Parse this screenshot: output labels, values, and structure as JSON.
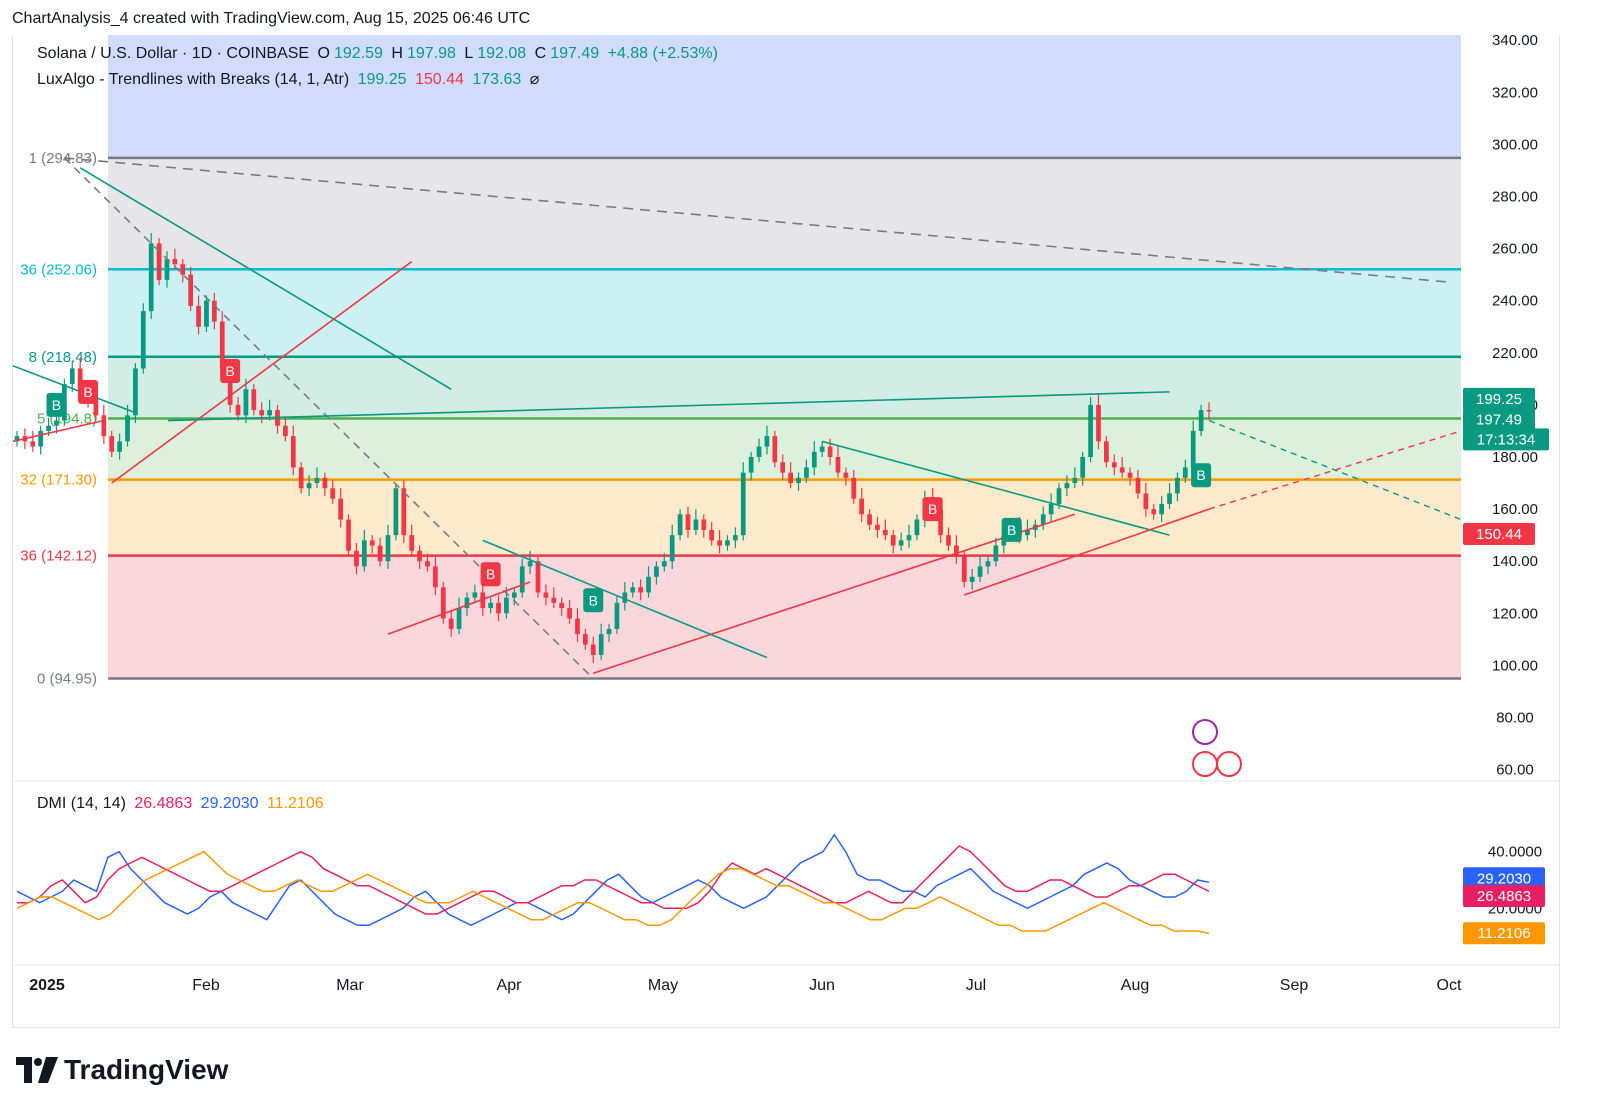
{
  "caption": "ChartAnalysis_4 created with TradingView.com, Aug 15, 2025 06:46 UTC",
  "brand": "TradingView",
  "legend": {
    "symbol": "Solana / U.S. Dollar · 1D · COINBASE",
    "open_label": "O",
    "open": "192.59",
    "high_label": "H",
    "high": "197.98",
    "low_label": "L",
    "low": "192.08",
    "close_label": "C",
    "close": "197.49",
    "change": "+4.88 (+2.53%)",
    "indicator": "LuxAlgo - Trendlines with Breaks (14, 1, Atr)",
    "ind_v1": "199.25",
    "ind_v2": "150.44",
    "ind_v3": "173.63",
    "ind_icon": "⌀"
  },
  "dmi_legend": {
    "label": "DMI (14, 14)",
    "v1": "26.4863",
    "v2": "29.2030",
    "v3": "11.2106"
  },
  "colors": {
    "up": "#089981",
    "down": "#f23645",
    "blue": "#2962ff",
    "pink": "#e91e63",
    "orange": "#ff9800",
    "fib_grey": "#787b86"
  },
  "chart_data": {
    "type": "candlestick",
    "x_axis": {
      "labels": [
        "2025",
        "Feb",
        "Mar",
        "Apr",
        "May",
        "Jun",
        "Jul",
        "Aug",
        "Sep",
        "Oct"
      ],
      "range": [
        "2025-01-01",
        "2025-10-01"
      ]
    },
    "y_axis": {
      "ticks": [
        "340.00",
        "320.00",
        "300.00",
        "280.00",
        "260.00",
        "240.00",
        "220.00",
        "200.00",
        "180.00",
        "160.00",
        "140.00",
        "120.00",
        "100.00",
        "80.00",
        "60.00"
      ],
      "range": [
        56,
        342
      ]
    },
    "price_labels": {
      "upper": "199.25",
      "close": "197.49",
      "countdown": "17:13:34",
      "lower": "150.44"
    },
    "fib_levels": [
      {
        "label": "1 (294.83)",
        "value": 294.83,
        "color": "#787b86"
      },
      {
        "label": "36 (252.06)",
        "value": 252.06,
        "color": "#00bcd4"
      },
      {
        "label": "8 (218.48)",
        "value": 218.48,
        "color": "#089981"
      },
      {
        "label": "5 (194.8)",
        "value": 194.8,
        "color": "#4caf50"
      },
      {
        "label": "32 (171.30)",
        "value": 171.3,
        "color": "#ff9800"
      },
      {
        "label": "36 (142.12)",
        "value": 142.12,
        "color": "#f23645"
      },
      {
        "label": "0 (94.95)",
        "value": 94.95,
        "color": "#787b86"
      }
    ],
    "fib_zones": [
      {
        "from": 294.83,
        "to": 342,
        "color": "#d1dcfd"
      },
      {
        "from": 252.06,
        "to": 294.83,
        "color": "#e6e6e8"
      },
      {
        "from": 218.48,
        "to": 252.06,
        "color": "#cdf0f3"
      },
      {
        "from": 194.8,
        "to": 218.48,
        "color": "#d2ede4"
      },
      {
        "from": 171.3,
        "to": 194.8,
        "color": "#dcf0dc"
      },
      {
        "from": 142.12,
        "to": 171.3,
        "color": "#fde9cc"
      },
      {
        "from": 94.95,
        "to": 142.12,
        "color": "#fad7da"
      }
    ],
    "candles_close": [
      188,
      186,
      184,
      190,
      192,
      194,
      208,
      214,
      206,
      202,
      196,
      188,
      182,
      186,
      196,
      214,
      236,
      262,
      248,
      256,
      254,
      250,
      238,
      230,
      240,
      232,
      214,
      200,
      196,
      206,
      198,
      196,
      198,
      192,
      188,
      176,
      168,
      170,
      172,
      168,
      164,
      156,
      144,
      138,
      148,
      146,
      140,
      150,
      168,
      150,
      144,
      140,
      138,
      130,
      118,
      114,
      122,
      126,
      128,
      122,
      124,
      120,
      126,
      128,
      138,
      140,
      128,
      126,
      124,
      122,
      118,
      112,
      108,
      104,
      112,
      114,
      124,
      128,
      130,
      128,
      134,
      138,
      140,
      150,
      158,
      152,
      156,
      152,
      148,
      146,
      148,
      150,
      174,
      180,
      184,
      188,
      178,
      174,
      170,
      172,
      176,
      182,
      184,
      180,
      174,
      172,
      164,
      158,
      154,
      152,
      150,
      146,
      148,
      150,
      156,
      164,
      160,
      150,
      146,
      142,
      132,
      134,
      138,
      140,
      146,
      150,
      154,
      150,
      152,
      154,
      158,
      162,
      168,
      170,
      172,
      180,
      200,
      186,
      178,
      176,
      174,
      172,
      166,
      160,
      158,
      162,
      166,
      172,
      176,
      190,
      198,
      197.49
    ],
    "dmi": {
      "plus_di": [
        22,
        22,
        24,
        28,
        30,
        26,
        22,
        24,
        30,
        34,
        36,
        38,
        36,
        34,
        32,
        30,
        28,
        26,
        26,
        28,
        30,
        32,
        34,
        36,
        38,
        40,
        38,
        34,
        32,
        30,
        28,
        28,
        26,
        24,
        22,
        20,
        18,
        18,
        20,
        22,
        24,
        26,
        26,
        24,
        22,
        22,
        24,
        26,
        28,
        28,
        30,
        30,
        28,
        26,
        24,
        22,
        22,
        20,
        20,
        20,
        22,
        26,
        32,
        36,
        34,
        32,
        34,
        32,
        30,
        28,
        26,
        24,
        22,
        22,
        24,
        26,
        24,
        22,
        22,
        26,
        30,
        34,
        38,
        42,
        40,
        36,
        32,
        28,
        26,
        26,
        28,
        30,
        30,
        28,
        26,
        24,
        24,
        26,
        28,
        28,
        30,
        32,
        32,
        30,
        28,
        26
      ],
      "minus_di": [
        26,
        24,
        22,
        24,
        26,
        30,
        28,
        26,
        38,
        40,
        34,
        30,
        26,
        22,
        20,
        18,
        20,
        24,
        26,
        22,
        20,
        18,
        16,
        22,
        28,
        30,
        26,
        22,
        18,
        16,
        14,
        14,
        16,
        18,
        20,
        24,
        26,
        22,
        18,
        16,
        14,
        16,
        18,
        20,
        22,
        22,
        20,
        18,
        16,
        18,
        22,
        26,
        30,
        32,
        28,
        24,
        22,
        24,
        26,
        28,
        30,
        28,
        24,
        22,
        20,
        22,
        24,
        28,
        32,
        36,
        38,
        40,
        46,
        40,
        32,
        30,
        30,
        28,
        26,
        26,
        24,
        28,
        30,
        32,
        34,
        30,
        26,
        24,
        22,
        20,
        22,
        24,
        26,
        28,
        32,
        34,
        36,
        34,
        30,
        28,
        26,
        24,
        24,
        26,
        30,
        29.2
      ],
      "adx": [
        20,
        22,
        24,
        24,
        22,
        20,
        18,
        16,
        18,
        22,
        26,
        30,
        32,
        34,
        36,
        38,
        40,
        36,
        32,
        30,
        28,
        26,
        26,
        28,
        30,
        28,
        26,
        26,
        28,
        30,
        32,
        30,
        28,
        26,
        24,
        22,
        22,
        22,
        24,
        26,
        24,
        22,
        20,
        18,
        16,
        16,
        18,
        20,
        22,
        22,
        20,
        18,
        16,
        16,
        14,
        14,
        16,
        20,
        24,
        28,
        32,
        34,
        34,
        32,
        30,
        28,
        28,
        26,
        24,
        22,
        22,
        20,
        18,
        16,
        16,
        18,
        20,
        20,
        22,
        24,
        22,
        20,
        18,
        16,
        14,
        14,
        12,
        12,
        12,
        14,
        16,
        18,
        20,
        22,
        20,
        18,
        16,
        14,
        14,
        12,
        12,
        12,
        11.2
      ]
    }
  }
}
